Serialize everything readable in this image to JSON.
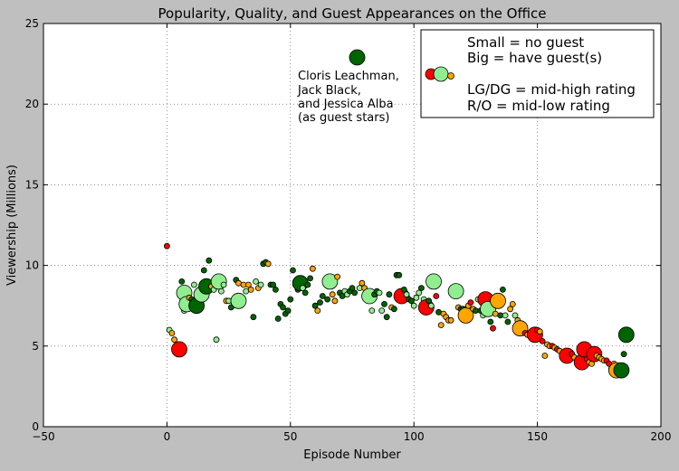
{
  "chart_data": {
    "type": "scatter",
    "title": "Popularity, Quality, and Guest Appearances on the Office",
    "xlabel": "Episode Number",
    "ylabel": "Viewership (Millions)",
    "xlim": [
      -50,
      200
    ],
    "ylim": [
      0,
      25
    ],
    "xticks": [
      -50,
      0,
      50,
      100,
      150,
      200
    ],
    "yticks": [
      0,
      5,
      10,
      15,
      20,
      25
    ],
    "xtick_labels": [
      "−50",
      "0",
      "50",
      "100",
      "150",
      "200"
    ],
    "ytick_labels": [
      "0",
      "5",
      "10",
      "15",
      "20",
      "25"
    ],
    "grid": true,
    "colors": {
      "red": "#ff0000",
      "orange": "#ffa500",
      "lightgreen": "#90ee90",
      "darkgreen": "#006400",
      "background": "#bfbfbf"
    },
    "legend": {
      "placement": "top-right",
      "lines": [
        "Small = no guest",
        "Big = have guest(s)",
        "",
        "LG/DG = mid-high rating",
        "R/O = mid-low rating"
      ]
    },
    "annotation": {
      "lines": [
        "Cloris Leachman,",
        "Jack Black,",
        "and Jessica Alba",
        "(as guest stars)"
      ],
      "point": {
        "x": 77,
        "y": 22.9,
        "color": "darkgreen",
        "size": "big"
      }
    },
    "points": [
      {
        "x": 0,
        "y": 11.2,
        "color": "red",
        "size": "small"
      },
      {
        "x": 1,
        "y": 6.0,
        "color": "lightgreen",
        "size": "small"
      },
      {
        "x": 2,
        "y": 5.8,
        "color": "orange",
        "size": "small"
      },
      {
        "x": 3,
        "y": 5.4,
        "color": "orange",
        "size": "small"
      },
      {
        "x": 5,
        "y": 4.8,
        "color": "red",
        "size": "big"
      },
      {
        "x": 6,
        "y": 9.0,
        "color": "darkgreen",
        "size": "small"
      },
      {
        "x": 7,
        "y": 8.3,
        "color": "lightgreen",
        "size": "big"
      },
      {
        "x": 7,
        "y": 7.2,
        "color": "lightgreen",
        "size": "small"
      },
      {
        "x": 8,
        "y": 7.6,
        "color": "lightgreen",
        "size": "big"
      },
      {
        "x": 9,
        "y": 8.0,
        "color": "orange",
        "size": "small"
      },
      {
        "x": 10,
        "y": 7.9,
        "color": "darkgreen",
        "size": "small"
      },
      {
        "x": 11,
        "y": 8.8,
        "color": "lightgreen",
        "size": "small"
      },
      {
        "x": 12,
        "y": 7.5,
        "color": "darkgreen",
        "size": "big"
      },
      {
        "x": 14,
        "y": 8.2,
        "color": "lightgreen",
        "size": "big"
      },
      {
        "x": 15,
        "y": 9.7,
        "color": "darkgreen",
        "size": "small"
      },
      {
        "x": 16,
        "y": 8.7,
        "color": "darkgreen",
        "size": "big"
      },
      {
        "x": 17,
        "y": 10.3,
        "color": "darkgreen",
        "size": "small"
      },
      {
        "x": 18,
        "y": 8.7,
        "color": "orange",
        "size": "small"
      },
      {
        "x": 19,
        "y": 8.5,
        "color": "lightgreen",
        "size": "small"
      },
      {
        "x": 20,
        "y": 5.4,
        "color": "lightgreen",
        "size": "small"
      },
      {
        "x": 21,
        "y": 9.0,
        "color": "lightgreen",
        "size": "big"
      },
      {
        "x": 22,
        "y": 8.4,
        "color": "lightgreen",
        "size": "small"
      },
      {
        "x": 23,
        "y": 8.8,
        "color": "lightgreen",
        "size": "small"
      },
      {
        "x": 24,
        "y": 7.8,
        "color": "orange",
        "size": "small"
      },
      {
        "x": 25,
        "y": 7.8,
        "color": "lightgreen",
        "size": "small"
      },
      {
        "x": 26,
        "y": 7.4,
        "color": "darkgreen",
        "size": "small"
      },
      {
        "x": 27,
        "y": 7.7,
        "color": "lightgreen",
        "size": "small"
      },
      {
        "x": 28,
        "y": 9.1,
        "color": "darkgreen",
        "size": "small"
      },
      {
        "x": 29,
        "y": 8.9,
        "color": "orange",
        "size": "small"
      },
      {
        "x": 29,
        "y": 7.8,
        "color": "lightgreen",
        "size": "big"
      },
      {
        "x": 31,
        "y": 8.8,
        "color": "orange",
        "size": "small"
      },
      {
        "x": 32,
        "y": 8.4,
        "color": "lightgreen",
        "size": "small"
      },
      {
        "x": 33,
        "y": 8.8,
        "color": "orange",
        "size": "small"
      },
      {
        "x": 34,
        "y": 8.5,
        "color": "orange",
        "size": "small"
      },
      {
        "x": 35,
        "y": 6.8,
        "color": "darkgreen",
        "size": "small"
      },
      {
        "x": 36,
        "y": 9.0,
        "color": "lightgreen",
        "size": "small"
      },
      {
        "x": 37,
        "y": 8.6,
        "color": "orange",
        "size": "small"
      },
      {
        "x": 38,
        "y": 8.8,
        "color": "lightgreen",
        "size": "small"
      },
      {
        "x": 39,
        "y": 10.1,
        "color": "darkgreen",
        "size": "small"
      },
      {
        "x": 40,
        "y": 10.2,
        "color": "darkgreen",
        "size": "small"
      },
      {
        "x": 41,
        "y": 10.1,
        "color": "orange",
        "size": "small"
      },
      {
        "x": 42,
        "y": 8.8,
        "color": "darkgreen",
        "size": "small"
      },
      {
        "x": 43,
        "y": 8.8,
        "color": "darkgreen",
        "size": "small"
      },
      {
        "x": 44,
        "y": 8.5,
        "color": "darkgreen",
        "size": "small"
      },
      {
        "x": 45,
        "y": 6.7,
        "color": "darkgreen",
        "size": "small"
      },
      {
        "x": 46,
        "y": 7.6,
        "color": "darkgreen",
        "size": "small"
      },
      {
        "x": 47,
        "y": 7.4,
        "color": "darkgreen",
        "size": "small"
      },
      {
        "x": 48,
        "y": 7.0,
        "color": "darkgreen",
        "size": "small"
      },
      {
        "x": 49,
        "y": 7.2,
        "color": "darkgreen",
        "size": "small"
      },
      {
        "x": 50,
        "y": 7.9,
        "color": "darkgreen",
        "size": "small"
      },
      {
        "x": 51,
        "y": 9.7,
        "color": "darkgreen",
        "size": "small"
      },
      {
        "x": 52,
        "y": 8.8,
        "color": "lightgreen",
        "size": "small"
      },
      {
        "x": 53,
        "y": 8.5,
        "color": "darkgreen",
        "size": "small"
      },
      {
        "x": 54,
        "y": 8.9,
        "color": "darkgreen",
        "size": "big"
      },
      {
        "x": 55,
        "y": 8.6,
        "color": "lightgreen",
        "size": "small"
      },
      {
        "x": 56,
        "y": 8.3,
        "color": "darkgreen",
        "size": "small"
      },
      {
        "x": 57,
        "y": 8.8,
        "color": "darkgreen",
        "size": "small"
      },
      {
        "x": 58,
        "y": 9.2,
        "color": "darkgreen",
        "size": "small"
      },
      {
        "x": 59,
        "y": 9.8,
        "color": "orange",
        "size": "small"
      },
      {
        "x": 60,
        "y": 7.5,
        "color": "darkgreen",
        "size": "small"
      },
      {
        "x": 61,
        "y": 7.2,
        "color": "orange",
        "size": "small"
      },
      {
        "x": 62,
        "y": 7.7,
        "color": "darkgreen",
        "size": "small"
      },
      {
        "x": 63,
        "y": 8.1,
        "color": "darkgreen",
        "size": "small"
      },
      {
        "x": 65,
        "y": 7.9,
        "color": "darkgreen",
        "size": "small"
      },
      {
        "x": 66,
        "y": 9.0,
        "color": "lightgreen",
        "size": "big"
      },
      {
        "x": 67,
        "y": 8.2,
        "color": "orange",
        "size": "small"
      },
      {
        "x": 68,
        "y": 7.8,
        "color": "orange",
        "size": "small"
      },
      {
        "x": 69,
        "y": 9.3,
        "color": "orange",
        "size": "small"
      },
      {
        "x": 70,
        "y": 8.3,
        "color": "darkgreen",
        "size": "small"
      },
      {
        "x": 71,
        "y": 8.1,
        "color": "darkgreen",
        "size": "small"
      },
      {
        "x": 72,
        "y": 8.4,
        "color": "lightgreen",
        "size": "small"
      },
      {
        "x": 73,
        "y": 8.2,
        "color": "lightgreen",
        "size": "small"
      },
      {
        "x": 74,
        "y": 8.4,
        "color": "darkgreen",
        "size": "small"
      },
      {
        "x": 75,
        "y": 8.6,
        "color": "darkgreen",
        "size": "small"
      },
      {
        "x": 76,
        "y": 8.3,
        "color": "darkgreen",
        "size": "small"
      },
      {
        "x": 78,
        "y": 8.6,
        "color": "lightgreen",
        "size": "small"
      },
      {
        "x": 79,
        "y": 8.9,
        "color": "orange",
        "size": "small"
      },
      {
        "x": 80,
        "y": 8.6,
        "color": "orange",
        "size": "small"
      },
      {
        "x": 81,
        "y": 8.0,
        "color": "orange",
        "size": "small"
      },
      {
        "x": 82,
        "y": 8.1,
        "color": "lightgreen",
        "size": "big"
      },
      {
        "x": 83,
        "y": 7.2,
        "color": "lightgreen",
        "size": "small"
      },
      {
        "x": 84,
        "y": 8.2,
        "color": "darkgreen",
        "size": "small"
      },
      {
        "x": 85,
        "y": 8.4,
        "color": "darkgreen",
        "size": "small"
      },
      {
        "x": 86,
        "y": 8.3,
        "color": "lightgreen",
        "size": "small"
      },
      {
        "x": 87,
        "y": 7.2,
        "color": "lightgreen",
        "size": "small"
      },
      {
        "x": 88,
        "y": 7.6,
        "color": "darkgreen",
        "size": "small"
      },
      {
        "x": 89,
        "y": 6.8,
        "color": "darkgreen",
        "size": "small"
      },
      {
        "x": 90,
        "y": 8.2,
        "color": "darkgreen",
        "size": "small"
      },
      {
        "x": 91,
        "y": 7.4,
        "color": "orange",
        "size": "small"
      },
      {
        "x": 92,
        "y": 7.3,
        "color": "darkgreen",
        "size": "small"
      },
      {
        "x": 93,
        "y": 9.4,
        "color": "darkgreen",
        "size": "small"
      },
      {
        "x": 94,
        "y": 9.4,
        "color": "darkgreen",
        "size": "small"
      },
      {
        "x": 95,
        "y": 8.1,
        "color": "red",
        "size": "big"
      },
      {
        "x": 96,
        "y": 8.5,
        "color": "darkgreen",
        "size": "small"
      },
      {
        "x": 97,
        "y": 8.2,
        "color": "lightgreen",
        "size": "small"
      },
      {
        "x": 98,
        "y": 7.9,
        "color": "darkgreen",
        "size": "small"
      },
      {
        "x": 99,
        "y": 7.8,
        "color": "darkgreen",
        "size": "small"
      },
      {
        "x": 100,
        "y": 7.5,
        "color": "lightgreen",
        "size": "small"
      },
      {
        "x": 101,
        "y": 8.0,
        "color": "lightgreen",
        "size": "small"
      },
      {
        "x": 102,
        "y": 8.3,
        "color": "lightgreen",
        "size": "small"
      },
      {
        "x": 103,
        "y": 8.6,
        "color": "darkgreen",
        "size": "small"
      },
      {
        "x": 104,
        "y": 7.9,
        "color": "lightgreen",
        "size": "small"
      },
      {
        "x": 105,
        "y": 7.4,
        "color": "red",
        "size": "big"
      },
      {
        "x": 106,
        "y": 7.8,
        "color": "darkgreen",
        "size": "small"
      },
      {
        "x": 107,
        "y": 7.5,
        "color": "lightgreen",
        "size": "small"
      },
      {
        "x": 108,
        "y": 9.0,
        "color": "lightgreen",
        "size": "big"
      },
      {
        "x": 109,
        "y": 8.1,
        "color": "red",
        "size": "small"
      },
      {
        "x": 110,
        "y": 7.1,
        "color": "darkgreen",
        "size": "small"
      },
      {
        "x": 111,
        "y": 6.3,
        "color": "orange",
        "size": "small"
      },
      {
        "x": 112,
        "y": 7.0,
        "color": "orange",
        "size": "small"
      },
      {
        "x": 113,
        "y": 6.8,
        "color": "orange",
        "size": "small"
      },
      {
        "x": 114,
        "y": 6.6,
        "color": "orange",
        "size": "small"
      },
      {
        "x": 115,
        "y": 6.6,
        "color": "orange",
        "size": "small"
      },
      {
        "x": 116,
        "y": 8.3,
        "color": "lightgreen",
        "size": "small"
      },
      {
        "x": 117,
        "y": 8.4,
        "color": "lightgreen",
        "size": "big"
      },
      {
        "x": 118,
        "y": 7.4,
        "color": "orange",
        "size": "small"
      },
      {
        "x": 119,
        "y": 7.3,
        "color": "darkgreen",
        "size": "small"
      },
      {
        "x": 120,
        "y": 7.3,
        "color": "darkgreen",
        "size": "small"
      },
      {
        "x": 121,
        "y": 6.9,
        "color": "orange",
        "size": "big"
      },
      {
        "x": 122,
        "y": 7.5,
        "color": "orange",
        "size": "small"
      },
      {
        "x": 123,
        "y": 7.7,
        "color": "red",
        "size": "small"
      },
      {
        "x": 124,
        "y": 7.3,
        "color": "orange",
        "size": "small"
      },
      {
        "x": 125,
        "y": 7.2,
        "color": "darkgreen",
        "size": "small"
      },
      {
        "x": 126,
        "y": 7.9,
        "color": "lightgreen",
        "size": "small"
      },
      {
        "x": 127,
        "y": 7.2,
        "color": "darkgreen",
        "size": "small"
      },
      {
        "x": 128,
        "y": 6.9,
        "color": "lightgreen",
        "size": "small"
      },
      {
        "x": 129,
        "y": 7.9,
        "color": "red",
        "size": "big"
      },
      {
        "x": 130,
        "y": 7.3,
        "color": "lightgreen",
        "size": "big"
      },
      {
        "x": 131,
        "y": 6.5,
        "color": "darkgreen",
        "size": "small"
      },
      {
        "x": 132,
        "y": 6.1,
        "color": "red",
        "size": "small"
      },
      {
        "x": 133,
        "y": 7.0,
        "color": "orange",
        "size": "small"
      },
      {
        "x": 134,
        "y": 7.8,
        "color": "orange",
        "size": "big"
      },
      {
        "x": 135,
        "y": 6.9,
        "color": "darkgreen",
        "size": "small"
      },
      {
        "x": 136,
        "y": 8.5,
        "color": "darkgreen",
        "size": "small"
      },
      {
        "x": 137,
        "y": 6.9,
        "color": "lightgreen",
        "size": "small"
      },
      {
        "x": 138,
        "y": 6.5,
        "color": "darkgreen",
        "size": "small"
      },
      {
        "x": 139,
        "y": 7.3,
        "color": "orange",
        "size": "small"
      },
      {
        "x": 140,
        "y": 7.6,
        "color": "orange",
        "size": "small"
      },
      {
        "x": 141,
        "y": 6.9,
        "color": "lightgreen",
        "size": "small"
      },
      {
        "x": 142,
        "y": 6.6,
        "color": "orange",
        "size": "small"
      },
      {
        "x": 143,
        "y": 6.1,
        "color": "orange",
        "size": "big"
      },
      {
        "x": 145,
        "y": 5.8,
        "color": "red",
        "size": "small"
      },
      {
        "x": 146,
        "y": 5.7,
        "color": "orange",
        "size": "small"
      },
      {
        "x": 148,
        "y": 5.6,
        "color": "orange",
        "size": "small"
      },
      {
        "x": 149,
        "y": 5.7,
        "color": "red",
        "size": "big"
      },
      {
        "x": 150,
        "y": 6.0,
        "color": "red",
        "size": "small"
      },
      {
        "x": 151,
        "y": 5.9,
        "color": "orange",
        "size": "small"
      },
      {
        "x": 152,
        "y": 5.3,
        "color": "red",
        "size": "small"
      },
      {
        "x": 153,
        "y": 4.4,
        "color": "orange",
        "size": "small"
      },
      {
        "x": 154,
        "y": 5.1,
        "color": "orange",
        "size": "small"
      },
      {
        "x": 155,
        "y": 5.0,
        "color": "orange",
        "size": "small"
      },
      {
        "x": 156,
        "y": 5.0,
        "color": "red",
        "size": "small"
      },
      {
        "x": 157,
        "y": 4.9,
        "color": "orange",
        "size": "small"
      },
      {
        "x": 158,
        "y": 4.8,
        "color": "red",
        "size": "small"
      },
      {
        "x": 159,
        "y": 4.7,
        "color": "orange",
        "size": "small"
      },
      {
        "x": 160,
        "y": 4.4,
        "color": "orange",
        "size": "small"
      },
      {
        "x": 162,
        "y": 4.4,
        "color": "red",
        "size": "big"
      },
      {
        "x": 164,
        "y": 4.5,
        "color": "red",
        "size": "small"
      },
      {
        "x": 165,
        "y": 4.3,
        "color": "orange",
        "size": "small"
      },
      {
        "x": 167,
        "y": 4.0,
        "color": "orange",
        "size": "small"
      },
      {
        "x": 168,
        "y": 4.0,
        "color": "red",
        "size": "big"
      },
      {
        "x": 169,
        "y": 4.8,
        "color": "red",
        "size": "big"
      },
      {
        "x": 170,
        "y": 4.2,
        "color": "red",
        "size": "small"
      },
      {
        "x": 171,
        "y": 4.0,
        "color": "orange",
        "size": "small"
      },
      {
        "x": 172,
        "y": 3.9,
        "color": "orange",
        "size": "small"
      },
      {
        "x": 173,
        "y": 4.5,
        "color": "red",
        "size": "big"
      },
      {
        "x": 174,
        "y": 4.4,
        "color": "orange",
        "size": "small"
      },
      {
        "x": 175,
        "y": 4.3,
        "color": "orange",
        "size": "small"
      },
      {
        "x": 176,
        "y": 4.2,
        "color": "orange",
        "size": "small"
      },
      {
        "x": 177,
        "y": 4.1,
        "color": "orange",
        "size": "small"
      },
      {
        "x": 178,
        "y": 4.1,
        "color": "red",
        "size": "small"
      },
      {
        "x": 179,
        "y": 3.9,
        "color": "red",
        "size": "small"
      },
      {
        "x": 180,
        "y": 3.6,
        "color": "orange",
        "size": "small"
      },
      {
        "x": 181,
        "y": 3.9,
        "color": "orange",
        "size": "small"
      },
      {
        "x": 182,
        "y": 3.5,
        "color": "orange",
        "size": "big"
      },
      {
        "x": 184,
        "y": 3.5,
        "color": "darkgreen",
        "size": "big"
      },
      {
        "x": 185,
        "y": 4.5,
        "color": "darkgreen",
        "size": "small"
      },
      {
        "x": 186,
        "y": 5.7,
        "color": "darkgreen",
        "size": "big"
      }
    ]
  }
}
